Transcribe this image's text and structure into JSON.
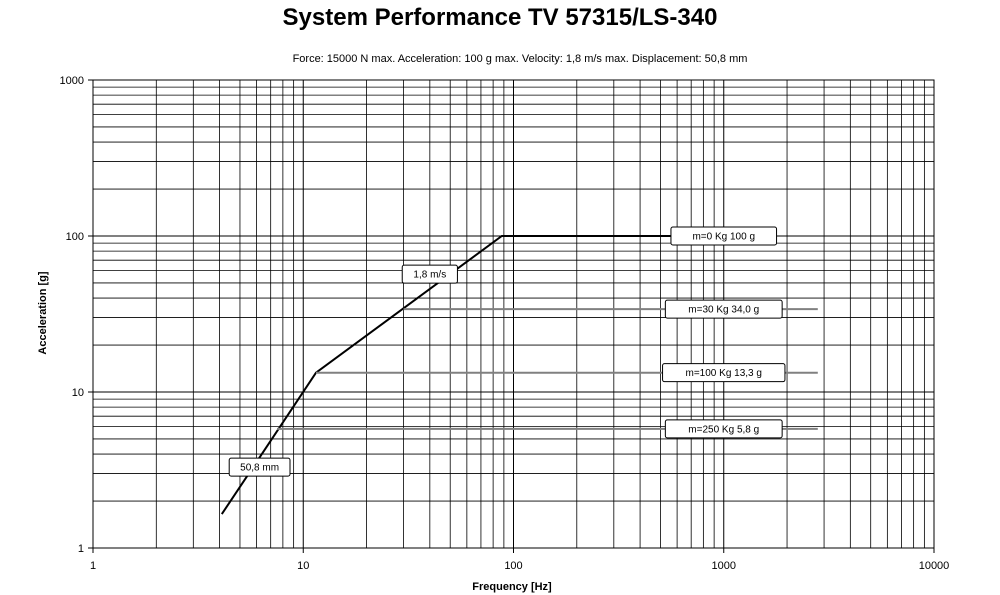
{
  "chart_data": {
    "type": "line",
    "title": "System Performance TV 57315/LS-340",
    "subtitle": "Force: 15000 N     max. Acceleration: 100 g     max. Velocity: 1,8  m/s     max. Displacement: 50,8 mm",
    "xlabel": "Frequency [Hz]",
    "ylabel": "Acceleration [g]",
    "x_scale": "log",
    "y_scale": "log",
    "xlim": [
      1,
      10000
    ],
    "ylim": [
      1,
      1000
    ],
    "grid": true,
    "x_ticks": [
      "1",
      "10",
      "100",
      "1000",
      "10000"
    ],
    "y_ticks": [
      "1",
      "10",
      "100",
      "1000"
    ],
    "series": [
      {
        "points": [
          [
            4.1,
            1.65
          ],
          [
            11.5,
            13.3
          ],
          [
            88,
            100
          ],
          [
            700,
            100
          ]
        ],
        "color": "#000000"
      },
      {
        "points": [
          [
            30,
            34.0
          ],
          [
            2800,
            34.0
          ]
        ],
        "color": "#808080"
      },
      {
        "points": [
          [
            11.5,
            13.3
          ],
          [
            2800,
            13.3
          ]
        ],
        "color": "#808080"
      },
      {
        "points": [
          [
            7.5,
            5.8
          ],
          [
            2800,
            5.8
          ]
        ],
        "color": "#808080"
      }
    ],
    "annotations": [
      {
        "text": "m=0 Kg     100 g",
        "x": 1000,
        "y": 100
      },
      {
        "text": "m=30 Kg     34,0 g",
        "x": 1000,
        "y": 34.0
      },
      {
        "text": "m=100 Kg     13,3 g",
        "x": 1000,
        "y": 13.3
      },
      {
        "text": "m=250 Kg     5,8 g",
        "x": 1000,
        "y": 5.8
      },
      {
        "text": "1,8 m/s",
        "x": 40,
        "y": 57
      },
      {
        "text": "50,8  mm",
        "x": 6.2,
        "y": 3.3
      }
    ]
  }
}
